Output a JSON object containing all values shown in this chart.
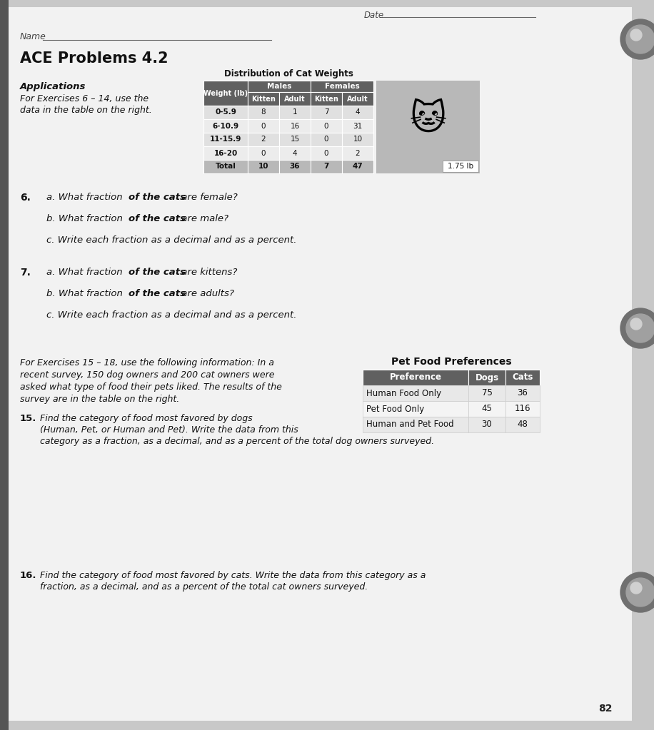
{
  "title": "ACE Problems 4.2",
  "date_label": "Date",
  "name_label": "Name",
  "bg_color": "#c8c8c8",
  "paper_color": "#f2f2f2",
  "header_color": "#606060",
  "table1_title": "Distribution of Cat Weights",
  "table1_headers": [
    "Weight (lb)",
    "Kitten",
    "Adult",
    "Kitten",
    "Adult"
  ],
  "table1_group_headers": [
    "Males",
    "Females"
  ],
  "table1_rows": [
    [
      "0-5.9",
      "8",
      "1",
      "7",
      "4"
    ],
    [
      "6-10.9",
      "0",
      "16",
      "0",
      "31"
    ],
    [
      "11-15.9",
      "2",
      "15",
      "0",
      "10"
    ],
    [
      "16-20",
      "0",
      "4",
      "0",
      "2"
    ],
    [
      "Total",
      "10",
      "36",
      "7",
      "47"
    ]
  ],
  "cat_weight_note": "1.75 lb",
  "section_applications": "Applications",
  "section_exercises_ref1": "For Exercises 6 – 14, use the",
  "section_exercises_ref2": "data in the table on the right.",
  "q6_num": "6.",
  "q6_a_pre": "a. What fraction ",
  "q6_a_bold": "of the cats",
  "q6_a_post": " are female?",
  "q6_b_pre": "b. What fraction ",
  "q6_b_bold": "of the cats",
  "q6_b_post": " are male?",
  "q6_c": "c. Write each fraction as a decimal and as a percent.",
  "q7_num": "7.",
  "q7_a_pre": "a. What fraction ",
  "q7_a_bold": "of the cats",
  "q7_a_post": " are kittens?",
  "q7_b_pre": "b. What fraction ",
  "q7_b_bold": "of the cats",
  "q7_b_post": " are adults?",
  "q7_c": "c. Write each fraction as a decimal and as a percent.",
  "table2_title": "Pet Food Preferences",
  "table2_headers": [
    "Preference",
    "Dogs",
    "Cats"
  ],
  "table2_rows": [
    [
      "Human Food Only",
      "75",
      "36"
    ],
    [
      "Pet Food Only",
      "45",
      "116"
    ],
    [
      "Human and Pet Food",
      "30",
      "48"
    ]
  ],
  "para_15_18_line1": "For Exercises 15 – 18, use the following information: In a",
  "para_15_18_line2": "recent survey, 150 dog owners and 200 cat owners were",
  "para_15_18_line3": "asked what type of food their pets liked. The results of the",
  "para_15_18_line4": "survey are in the table on the right.",
  "q15_num": "15.",
  "q15_line1": "Find the category of food most favored by dogs",
  "q15_line2": "(Human, Pet, or Human and Pet). Write the data from this",
  "q15_line3": "category as a fraction, as a decimal, and as a percent of the total dog owners surveyed.",
  "q16_num": "16.",
  "q16_line1": "Find the category of food most favored by cats. Write the data from this category as a",
  "q16_line2": "fraction, as a decimal, and as a percent of the total cat owners surveyed.",
  "page_num": "82"
}
